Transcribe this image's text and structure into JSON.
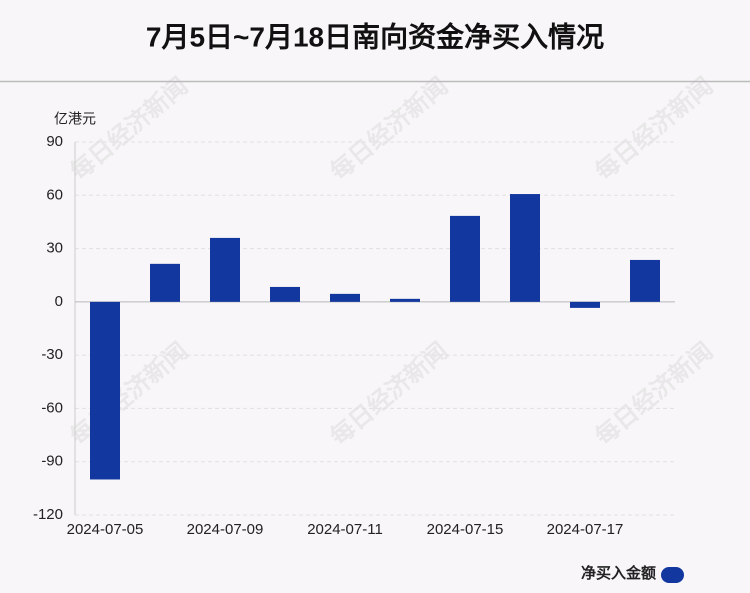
{
  "chart_data": {
    "type": "bar",
    "title": "7月5日~7月18日南向资金净买入情况",
    "y_label": "亿港元",
    "watermark": "每日经济新闻",
    "categories": [
      "2024-07-05",
      null,
      "2024-07-09",
      null,
      "2024-07-11",
      null,
      "2024-07-15",
      null,
      "2024-07-17",
      null
    ],
    "series": [
      {
        "name": "净买入金额",
        "color": "#1238a0",
        "values": [
          -100,
          21.4,
          36,
          8.4,
          4.5,
          1.7,
          48.4,
          60.7,
          -3.4,
          23.6
        ]
      }
    ],
    "ylim": [
      -120,
      90
    ],
    "yticks": [
      -120,
      -90,
      -60,
      -30,
      0,
      30,
      60,
      90
    ],
    "grid": true
  }
}
